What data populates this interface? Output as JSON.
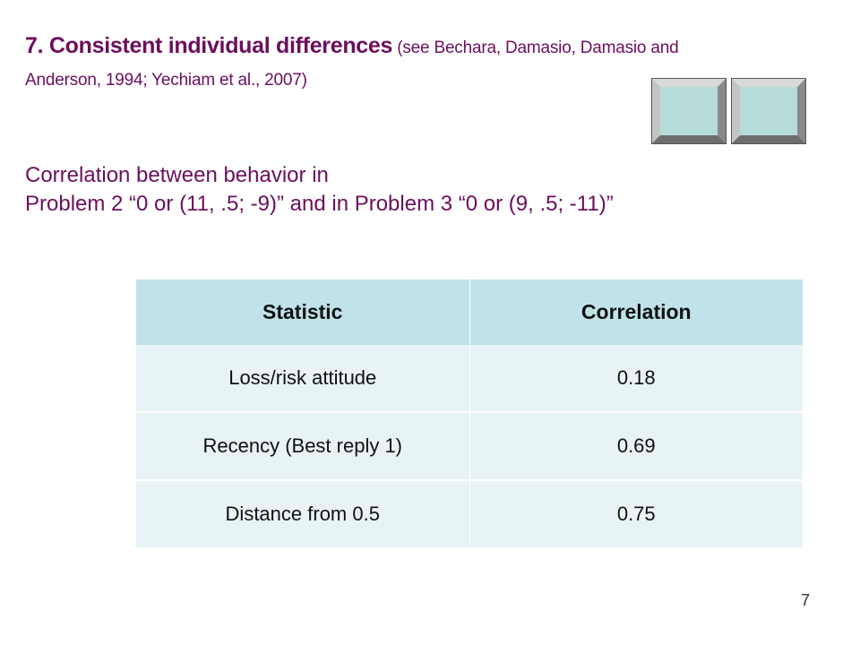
{
  "title": {
    "main": "7. Consistent individual differences",
    "ref_open": " (",
    "ref_see": "see ",
    "ref_names_line1": "Bechara, Damasio, Damasio and",
    "ref_names_line2": "Anderson, 1994; Yechiam et al., 2007",
    "ref_close": ")"
  },
  "subtitle": {
    "line1": "Correlation between behavior in",
    "line2": "Problem 2 “0 or (11, .5; -9)” and in Problem 3 “0 or (9, .5; -11)”"
  },
  "table": {
    "headers": [
      "Statistic",
      "Correlation"
    ],
    "rows": [
      {
        "statistic": "Loss/risk attitude",
        "correlation": "0.18"
      },
      {
        "statistic": "Recency (Best reply 1)",
        "correlation": "0.69"
      },
      {
        "statistic": "Distance from 0.5",
        "correlation": "0.75"
      }
    ]
  },
  "page_number": "7",
  "colors": {
    "title": "#6b0f5e",
    "header_fill": "#bfe3e8",
    "row_fill": "#e7f3f5",
    "bevel_fill": "#b6dcd9"
  }
}
